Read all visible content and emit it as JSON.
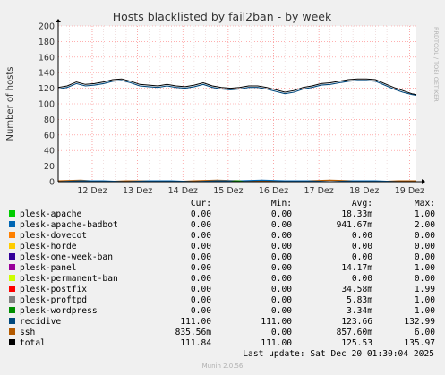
{
  "colors": {
    "background": "#f0f0f0",
    "plot_background": "#ffffff",
    "grid_major": "#ff8080",
    "grid_minor": "#e0c0c0",
    "axis": "#000000"
  },
  "side_label": "RRDTOOL / TOBI OETIKER",
  "legend_header": {
    "cur": "Cur:",
    "min": "Min:",
    "avg": "Avg:",
    "max": "Max:"
  },
  "legend": [
    {
      "name": "plesk-apache",
      "color": "#00cc00",
      "cur": "0.00",
      "min": "0.00",
      "avg": "18.33m",
      "max": "1.00"
    },
    {
      "name": "plesk-apache-badbot",
      "color": "#0066b3",
      "cur": "0.00",
      "min": "0.00",
      "avg": "941.67m",
      "max": "2.00"
    },
    {
      "name": "plesk-dovecot",
      "color": "#ff8000",
      "cur": "0.00",
      "min": "0.00",
      "avg": "0.00",
      "max": "0.00"
    },
    {
      "name": "plesk-horde",
      "color": "#ffcc00",
      "cur": "0.00",
      "min": "0.00",
      "avg": "0.00",
      "max": "0.00"
    },
    {
      "name": "plesk-one-week-ban",
      "color": "#330099",
      "cur": "0.00",
      "min": "0.00",
      "avg": "0.00",
      "max": "0.00"
    },
    {
      "name": "plesk-panel",
      "color": "#990099",
      "cur": "0.00",
      "min": "0.00",
      "avg": "14.17m",
      "max": "1.00"
    },
    {
      "name": "plesk-permanent-ban",
      "color": "#ccff00",
      "cur": "0.00",
      "min": "0.00",
      "avg": "0.00",
      "max": "0.00"
    },
    {
      "name": "plesk-postfix",
      "color": "#ff0000",
      "cur": "0.00",
      "min": "0.00",
      "avg": "34.58m",
      "max": "1.99"
    },
    {
      "name": "plesk-proftpd",
      "color": "#808080",
      "cur": "0.00",
      "min": "0.00",
      "avg": "5.83m",
      "max": "1.00"
    },
    {
      "name": "plesk-wordpress",
      "color": "#008f00",
      "cur": "0.00",
      "min": "0.00",
      "avg": "3.34m",
      "max": "1.00"
    },
    {
      "name": "recidive",
      "color": "#00487d",
      "cur": "111.00",
      "min": "111.00",
      "avg": "123.66",
      "max": "132.99"
    },
    {
      "name": "ssh",
      "color": "#b35a00",
      "cur": "835.56m",
      "min": "0.00",
      "avg": "857.60m",
      "max": "6.00"
    },
    {
      "name": "total",
      "color": "#000000",
      "cur": "111.84",
      "min": "111.00",
      "avg": "125.53",
      "max": "135.97"
    }
  ],
  "last_update": "Last update: Sat Dec 20 01:30:04 2025",
  "version": "Munin 2.0.56",
  "chart_data": {
    "type": "line",
    "title": "Hosts blacklisted by fail2ban - by week",
    "ylabel": "Number of hosts",
    "xlabel": "",
    "ylim": [
      0,
      200
    ],
    "yticks": [
      0,
      20,
      40,
      60,
      80,
      100,
      120,
      140,
      160,
      180,
      200
    ],
    "x_range": [
      0,
      7.9
    ],
    "x_ticks": [
      {
        "label": "12 Dez",
        "x": 0.75
      },
      {
        "label": "13 Dez",
        "x": 1.75
      },
      {
        "label": "14 Dez",
        "x": 2.75
      },
      {
        "label": "15 Dez",
        "x": 3.75
      },
      {
        "label": "16 Dez",
        "x": 4.75
      },
      {
        "label": "17 Dez",
        "x": 5.75
      },
      {
        "label": "18 Dez",
        "x": 6.75
      },
      {
        "label": "19 Dez",
        "x": 7.75
      }
    ],
    "grid": true,
    "series": [
      {
        "name": "recidive",
        "color": "#00487d",
        "x": [
          0,
          0.2,
          0.4,
          0.6,
          0.8,
          1.0,
          1.2,
          1.4,
          1.6,
          1.8,
          2.0,
          2.2,
          2.4,
          2.6,
          2.8,
          3.0,
          3.2,
          3.4,
          3.6,
          3.8,
          4.0,
          4.2,
          4.4,
          4.6,
          4.8,
          5.0,
          5.2,
          5.4,
          5.6,
          5.8,
          6.0,
          6.2,
          6.4,
          6.6,
          6.8,
          7.0,
          7.2,
          7.4,
          7.6,
          7.8,
          7.9
        ],
        "values": [
          119,
          121,
          126,
          123,
          124,
          126,
          129,
          130,
          127,
          123,
          122,
          121,
          123,
          121,
          120,
          122,
          125,
          121,
          119,
          118,
          119,
          121,
          121,
          119,
          116,
          113,
          115,
          119,
          121,
          124,
          125,
          127,
          129,
          130,
          130,
          129,
          124,
          119,
          115,
          112,
          111
        ]
      },
      {
        "name": "total",
        "color": "#000000",
        "x": [
          0,
          0.2,
          0.4,
          0.6,
          0.8,
          1.0,
          1.2,
          1.4,
          1.6,
          1.8,
          2.0,
          2.2,
          2.4,
          2.6,
          2.8,
          3.0,
          3.2,
          3.4,
          3.6,
          3.8,
          4.0,
          4.2,
          4.4,
          4.6,
          4.8,
          5.0,
          5.2,
          5.4,
          5.6,
          5.8,
          6.0,
          6.2,
          6.4,
          6.6,
          6.8,
          7.0,
          7.2,
          7.4,
          7.6,
          7.8,
          7.9
        ],
        "values": [
          121,
          123,
          128,
          125,
          126,
          128,
          131,
          132,
          129,
          125,
          124,
          123,
          125,
          123,
          122,
          124,
          127,
          123,
          121,
          120,
          121,
          123,
          123,
          121,
          118,
          115,
          117,
          121,
          123,
          126,
          127,
          129,
          131,
          132,
          132,
          131,
          126,
          121,
          117,
          113,
          112
        ]
      },
      {
        "name": "ssh",
        "color": "#b35a00",
        "x": [
          0,
          0.5,
          1.0,
          1.5,
          2.0,
          2.5,
          3.0,
          3.5,
          4.0,
          4.5,
          5.0,
          5.5,
          6.0,
          6.5,
          7.0,
          7.5,
          7.9
        ],
        "values": [
          1,
          2,
          0,
          1,
          1,
          0,
          1,
          2,
          1,
          1,
          0,
          1,
          2,
          1,
          0,
          1,
          1
        ]
      },
      {
        "name": "plesk-apache-badbot",
        "color": "#0066b3",
        "x": [
          0,
          0.5,
          1.0,
          1.5,
          2.0,
          2.5,
          3.0,
          3.5,
          4.0,
          4.5,
          5.0,
          5.5,
          6.0,
          6.5,
          7.0,
          7.5,
          7.9
        ],
        "values": [
          0,
          1,
          1,
          0,
          1,
          1,
          0,
          1,
          1,
          2,
          1,
          1,
          0,
          1,
          1,
          0,
          0
        ]
      },
      {
        "name": "plesk-wordpress",
        "color": "#008f00",
        "x": [
          0,
          2.0,
          3.8,
          3.9,
          4.0,
          4.1,
          5.0,
          7.9
        ],
        "values": [
          0,
          0,
          0,
          1,
          1,
          0,
          0,
          0
        ]
      }
    ]
  }
}
